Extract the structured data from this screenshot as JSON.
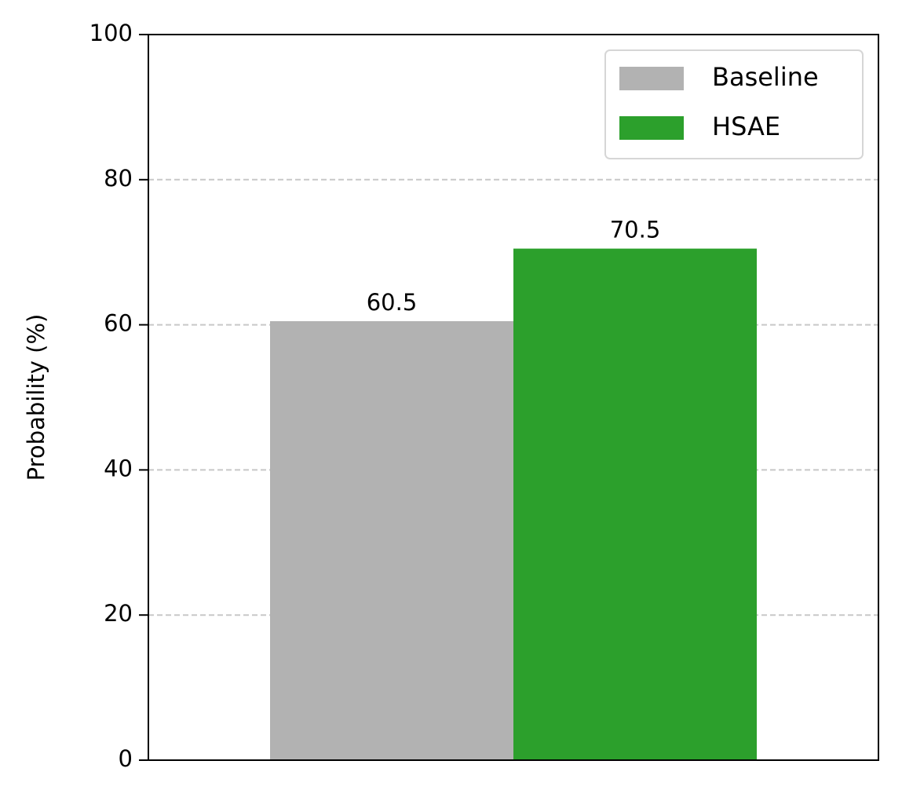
{
  "chart_data": {
    "type": "bar",
    "ylabel": "Probability (%)",
    "categories": [
      null
    ],
    "series": [
      {
        "name": "Baseline",
        "color": "#b2b2b2",
        "values": [
          60.5
        ]
      },
      {
        "name": "HSAE",
        "color": "#2ca02c",
        "values": [
          70.5
        ]
      }
    ],
    "ylim": [
      0,
      100
    ],
    "yticks": [
      0,
      20,
      40,
      60,
      80,
      100
    ],
    "grid": true,
    "legend": "upper right"
  }
}
